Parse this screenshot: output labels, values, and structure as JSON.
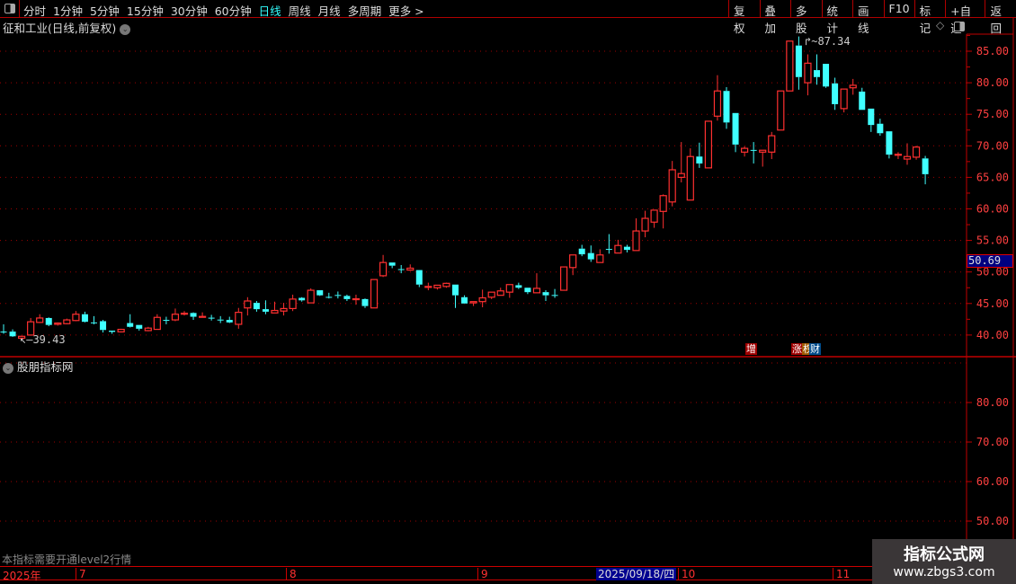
{
  "toolbar": {
    "menu": [
      "分时",
      "1分钟",
      "5分钟",
      "15分钟",
      "30分钟",
      "60分钟",
      "日线",
      "周线",
      "月线",
      "多周期",
      "更多 >"
    ],
    "active": "日线",
    "buttons": [
      "复权",
      "叠加",
      "多股",
      "统计",
      "画线",
      "F10",
      "标记",
      "+自选",
      "返回"
    ]
  },
  "chart": {
    "title": "征和工业(日线,前复权)",
    "current_price": "50.69",
    "high_label": "87.34",
    "low_label": "39.43",
    "price_ticks": [
      "85.00",
      "80.00",
      "75.00",
      "70.00",
      "65.00",
      "60.00",
      "55.00",
      "50.00",
      "45.00",
      "40.00"
    ],
    "tags": [
      {
        "text": "增",
        "color": "#a00000"
      },
      {
        "text": "涨",
        "color": "#a00000"
      },
      {
        "text": "权",
        "color": "#a05a00"
      },
      {
        "text": "财",
        "color": "#004c8c"
      }
    ]
  },
  "indicator": {
    "title": "股朋指标网",
    "ticks": [
      "80.00",
      "70.00",
      "60.00",
      "50.00"
    ],
    "notice": "本指标需要开通level2行情"
  },
  "date_axis": {
    "labels": [
      "2025年",
      "7",
      "8",
      "9",
      "10",
      "11"
    ],
    "cursor_date": "2025/09/18/四"
  },
  "watermark": {
    "line1": "指标公式网",
    "line2": "www.zbgs3.com"
  },
  "colors": {
    "up": "#ff3030",
    "down": "#40ffff",
    "grid": "#a00000",
    "axis": "#c00000"
  },
  "chart_data": {
    "type": "candlestick",
    "ylim": [
      38,
      88
    ],
    "fields": [
      "open",
      "high",
      "low",
      "close"
    ],
    "ohlc": [
      [
        40.55,
        41.7,
        40.2,
        40.5
      ],
      [
        40.55,
        40.9,
        39.7,
        39.8
      ],
      [
        39.5,
        39.9,
        39.43,
        39.8
      ],
      [
        40.0,
        42.7,
        39.9,
        42.1
      ],
      [
        42.0,
        43.3,
        41.9,
        42.7
      ],
      [
        42.7,
        42.8,
        41.4,
        41.6
      ],
      [
        41.7,
        42.0,
        41.5,
        41.9
      ],
      [
        41.8,
        42.6,
        41.7,
        42.4
      ],
      [
        42.3,
        43.8,
        42.2,
        43.3
      ],
      [
        43.3,
        43.7,
        42.0,
        42.1
      ],
      [
        42.0,
        43.0,
        41.7,
        41.9
      ],
      [
        42.2,
        42.4,
        40.4,
        40.8
      ],
      [
        40.7,
        40.7,
        40.2,
        40.5
      ],
      [
        40.5,
        41.0,
        40.4,
        40.9
      ],
      [
        41.9,
        43.3,
        41.2,
        41.3
      ],
      [
        41.6,
        41.6,
        40.7,
        41.0
      ],
      [
        40.7,
        41.3,
        40.6,
        41.1
      ],
      [
        40.9,
        43.3,
        40.9,
        42.8
      ],
      [
        42.4,
        42.9,
        41.7,
        42.3
      ],
      [
        42.4,
        44.2,
        42.2,
        43.3
      ],
      [
        43.35,
        43.8,
        43.1,
        43.45
      ],
      [
        43.5,
        43.6,
        42.4,
        42.9
      ],
      [
        42.9,
        43.6,
        42.9,
        42.95
      ],
      [
        42.75,
        43.2,
        42.3,
        42.7
      ],
      [
        42.45,
        43.0,
        41.9,
        42.4
      ],
      [
        42.4,
        42.9,
        41.9,
        42.0
      ],
      [
        41.7,
        44.3,
        41.0,
        43.6
      ],
      [
        44.3,
        46.0,
        43.1,
        45.4
      ],
      [
        45.1,
        45.4,
        43.7,
        44.1
      ],
      [
        44.1,
        45.5,
        43.3,
        43.7
      ],
      [
        43.5,
        45.3,
        43.5,
        43.9
      ],
      [
        43.8,
        45.1,
        43.1,
        44.2
      ],
      [
        44.2,
        46.4,
        43.8,
        45.7
      ],
      [
        45.9,
        46.0,
        45.3,
        45.5
      ],
      [
        45.1,
        47.4,
        45.1,
        47.1
      ],
      [
        47.1,
        47.1,
        46.2,
        46.3
      ],
      [
        46.05,
        46.7,
        45.8,
        46.0
      ],
      [
        46.35,
        46.9,
        45.8,
        46.3
      ],
      [
        46.2,
        46.4,
        45.4,
        45.7
      ],
      [
        45.7,
        46.4,
        44.8,
        45.75
      ],
      [
        45.7,
        45.8,
        44.3,
        44.6
      ],
      [
        44.3,
        48.8,
        44.3,
        48.8
      ],
      [
        49.4,
        52.7,
        49.2,
        51.5
      ],
      [
        51.5,
        51.5,
        50.6,
        51.0
      ],
      [
        50.45,
        51.1,
        49.8,
        50.4
      ],
      [
        50.3,
        51.2,
        50.2,
        50.6
      ],
      [
        50.3,
        50.3,
        47.6,
        48.0
      ],
      [
        47.65,
        48.3,
        47.1,
        47.7
      ],
      [
        47.5,
        47.9,
        47.2,
        47.9
      ],
      [
        47.7,
        48.3,
        47.5,
        48.2
      ],
      [
        48.0,
        48.0,
        44.3,
        46.3
      ],
      [
        46.0,
        46.3,
        45.0,
        45.0
      ],
      [
        45.1,
        45.3,
        44.6,
        45.3
      ],
      [
        45.3,
        47.2,
        44.4,
        45.9
      ],
      [
        46.0,
        46.8,
        45.7,
        46.8
      ],
      [
        46.3,
        47.5,
        46.3,
        47.0
      ],
      [
        46.8,
        48.0,
        45.9,
        48.0
      ],
      [
        47.9,
        48.3,
        47.3,
        47.5
      ],
      [
        47.5,
        47.5,
        46.5,
        46.8
      ],
      [
        46.7,
        49.8,
        46.7,
        47.4
      ],
      [
        46.8,
        47.1,
        45.4,
        46.3
      ],
      [
        46.35,
        47.3,
        45.9,
        46.3
      ],
      [
        47.1,
        50.8,
        47.1,
        50.8
      ],
      [
        50.7,
        52.7,
        49.5,
        52.7
      ],
      [
        53.7,
        54.3,
        52.5,
        52.8
      ],
      [
        53.0,
        54.2,
        51.6,
        52.0
      ],
      [
        51.5,
        53.6,
        51.5,
        52.7
      ],
      [
        53.65,
        56.0,
        52.9,
        53.6
      ],
      [
        53.0,
        55.1,
        53.0,
        54.2
      ],
      [
        54.0,
        54.3,
        53.1,
        53.5
      ],
      [
        53.4,
        58.5,
        53.4,
        56.5
      ],
      [
        56.5,
        59.7,
        55.5,
        58.5
      ],
      [
        57.9,
        59.8,
        57.0,
        59.8
      ],
      [
        59.6,
        62.3,
        56.9,
        62.1
      ],
      [
        61.1,
        67.6,
        60.4,
        66.2
      ],
      [
        65.0,
        70.6,
        64.2,
        65.6
      ],
      [
        61.4,
        69.6,
        61.4,
        68.3
      ],
      [
        68.3,
        70.5,
        66.5,
        67.2
      ],
      [
        66.5,
        73.9,
        66.5,
        73.9
      ],
      [
        74.7,
        81.2,
        74.0,
        78.7
      ],
      [
        78.7,
        79.3,
        72.7,
        73.7
      ],
      [
        75.2,
        75.2,
        69.0,
        70.2
      ],
      [
        69.0,
        69.9,
        68.3,
        69.6
      ],
      [
        69.35,
        70.6,
        67.2,
        69.3
      ],
      [
        69.0,
        69.3,
        66.7,
        69.3
      ],
      [
        69.0,
        72.2,
        67.9,
        71.6
      ],
      [
        72.5,
        78.7,
        72.5,
        78.7
      ],
      [
        78.7,
        86.6,
        78.7,
        86.6
      ],
      [
        85.9,
        87.34,
        78.9,
        80.9
      ],
      [
        80.0,
        84.5,
        78.0,
        83.1
      ],
      [
        82.0,
        84.5,
        79.7,
        80.9
      ],
      [
        83.0,
        83.0,
        79.2,
        79.4
      ],
      [
        79.9,
        80.8,
        75.7,
        76.6
      ],
      [
        75.9,
        79.0,
        75.3,
        79.0
      ],
      [
        79.2,
        80.6,
        78.1,
        79.6
      ],
      [
        78.6,
        79.2,
        75.7,
        75.7
      ],
      [
        75.9,
        75.9,
        72.2,
        73.3
      ],
      [
        73.5,
        74.3,
        71.6,
        72.0
      ],
      [
        72.3,
        72.3,
        68.0,
        68.6
      ],
      [
        68.55,
        69.0,
        67.9,
        68.65
      ],
      [
        67.9,
        70.4,
        67.0,
        68.3
      ],
      [
        68.2,
        70.0,
        67.8,
        69.8
      ],
      [
        68.0,
        68.4,
        63.9,
        65.5
      ]
    ]
  }
}
